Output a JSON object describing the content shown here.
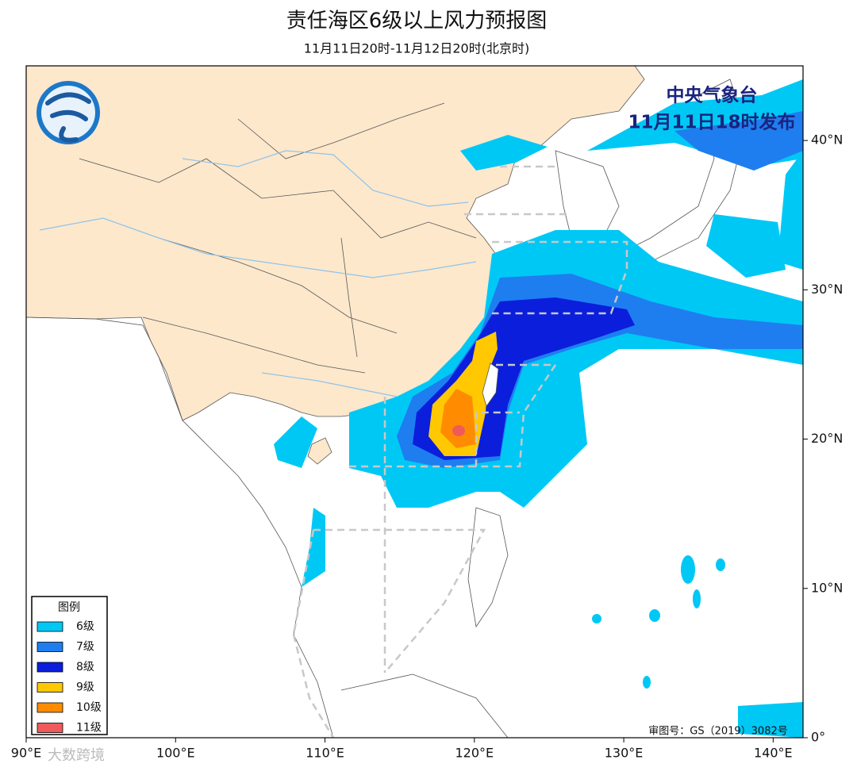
{
  "header": {
    "title": "责任海区6级以上风力预报图",
    "subtitle": "11月11日20时-11月12日20时(北京时)"
  },
  "issuer": {
    "agency": "中央气象台",
    "issued": "11月11日18时发布"
  },
  "map": {
    "lon_range": [
      90,
      142
    ],
    "lat_range": [
      0,
      45
    ],
    "lon_ticks": [
      {
        "value": 90,
        "label": "90°E"
      },
      {
        "value": 100,
        "label": "100°E"
      },
      {
        "value": 110,
        "label": "110°E"
      },
      {
        "value": 120,
        "label": "120°E"
      },
      {
        "value": 130,
        "label": "130°E"
      },
      {
        "value": 140,
        "label": "140°E"
      }
    ],
    "lat_ticks": [
      {
        "value": 0,
        "label": "0°"
      },
      {
        "value": 10,
        "label": "10°N"
      },
      {
        "value": 20,
        "label": "20°N"
      },
      {
        "value": 30,
        "label": "30°N"
      },
      {
        "value": 40,
        "label": "40°N"
      }
    ]
  },
  "legend": {
    "title": "图例",
    "items": [
      {
        "label": "6级",
        "color": "#00c8f5"
      },
      {
        "label": "7级",
        "color": "#1e7ef0"
      },
      {
        "label": "8级",
        "color": "#0a1edc"
      },
      {
        "label": "9级",
        "color": "#ffc800"
      },
      {
        "label": "10级",
        "color": "#ff8c00"
      },
      {
        "label": "11级",
        "color": "#f05a5a"
      }
    ]
  },
  "approval": "审图号：GS（2019）3082号",
  "watermark": "大数跨境"
}
